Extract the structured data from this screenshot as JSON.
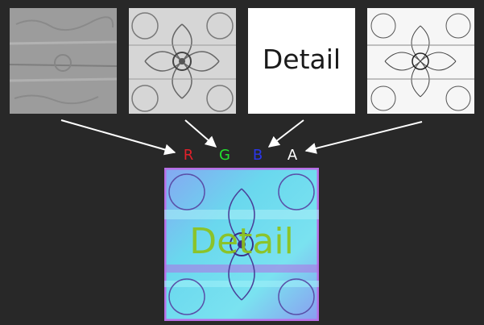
{
  "inputs": {
    "b_tile_text": "Detail"
  },
  "channels": {
    "r": "R",
    "g": "G",
    "b": "B",
    "a": "A"
  },
  "output": {
    "overlay_text": "Detail"
  },
  "colors": {
    "r": "#e0202a",
    "g": "#22e02e",
    "b": "#2a36e8",
    "a": "#ffffff",
    "background": "#282828",
    "combined_base": "#6fd6ec",
    "combined_edge": "#b86ee6",
    "combined_text": "#8ec21a"
  }
}
